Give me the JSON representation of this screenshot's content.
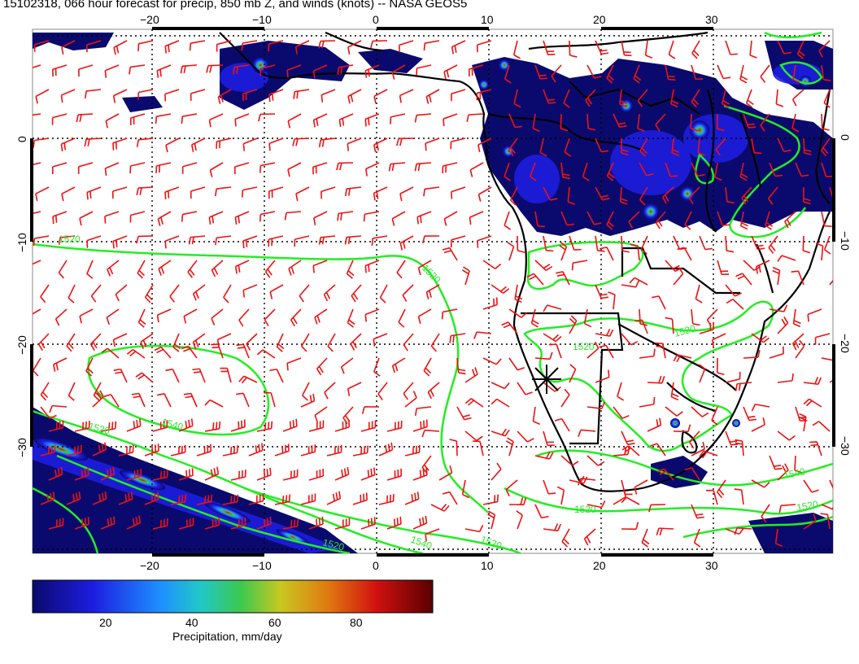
{
  "title": "15102318, 066 hour forecast for precip, 850 mb Z, and winds (knots) -- NASA GEOS5",
  "map": {
    "lon_ticks_top": [
      "−20",
      "−10",
      "0",
      "10",
      "20",
      "30"
    ],
    "lon_ticks_bottom": [
      "−20",
      "−10",
      "0",
      "10",
      "20",
      "30"
    ],
    "lat_ticks_left": [
      "0",
      "−10",
      "−20",
      "−30"
    ],
    "lat_ticks_right": [
      "0",
      "−10",
      "−20",
      "−30"
    ],
    "contour_labels": [
      "1520",
      "1520",
      "1520",
      "1540",
      "1520",
      "1540",
      "1520",
      "1520",
      "1520",
      "1540",
      "1520",
      "1520"
    ],
    "colors": {
      "contour": "#22ee22",
      "barb": "#ee1111",
      "coast": "#000000"
    }
  },
  "colorbar": {
    "label": "Precipitation, mm/day",
    "ticks": [
      "20",
      "40",
      "60",
      "80"
    ],
    "colors": [
      "#0a0a6e",
      "#1d1de0",
      "#1e90ff",
      "#20c8c8",
      "#3cc850",
      "#c8c820",
      "#e07810",
      "#d01010",
      "#5a0000"
    ]
  }
}
